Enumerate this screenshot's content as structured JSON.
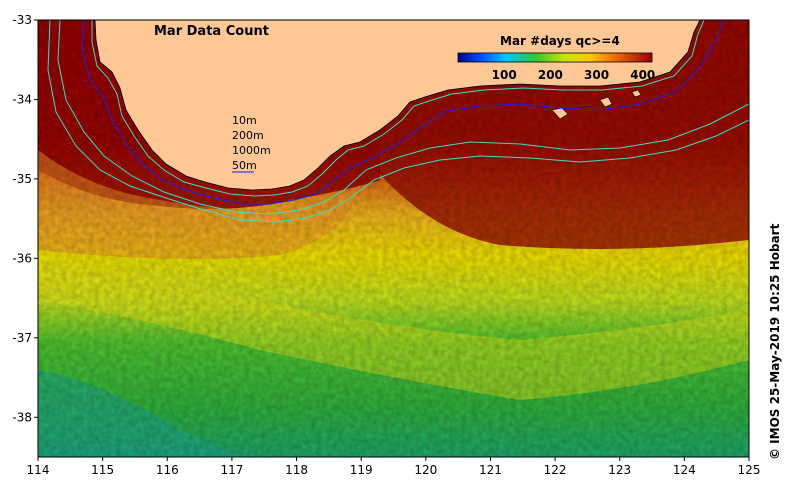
{
  "map": {
    "title": "Mar Data Count",
    "colorbar": {
      "title": "Mar #days qc>=4",
      "range": [
        0,
        420
      ],
      "ticks": [
        "100",
        "200",
        "300",
        "400"
      ],
      "tick_values": [
        100,
        200,
        300,
        400
      ]
    },
    "legend": {
      "items": [
        {
          "label": "10m"
        },
        {
          "label": "200m"
        },
        {
          "label": "1000m"
        },
        {
          "label": "50m"
        }
      ]
    },
    "lon_range": [
      114,
      125
    ],
    "lat_range": [
      -38.5,
      -33
    ],
    "x_ticks": [
      "114",
      "115",
      "116",
      "117",
      "118",
      "119",
      "120",
      "121",
      "122",
      "123",
      "124",
      "125"
    ],
    "y_ticks": [
      "-33",
      "-34",
      "-35",
      "-36",
      "-37",
      "-38"
    ],
    "credit": "© IMOS 25-May-2019 10:25 Hobart",
    "colors": {
      "land": "#fdc896",
      "high": "#990000",
      "mid_orange": "#f08c19",
      "yellow": "#f0f000",
      "green": "#3cc832",
      "teal": "#19b48c",
      "contour_cyan": "#3cdcc8",
      "contour_blue": "#1e1ef0"
    }
  }
}
